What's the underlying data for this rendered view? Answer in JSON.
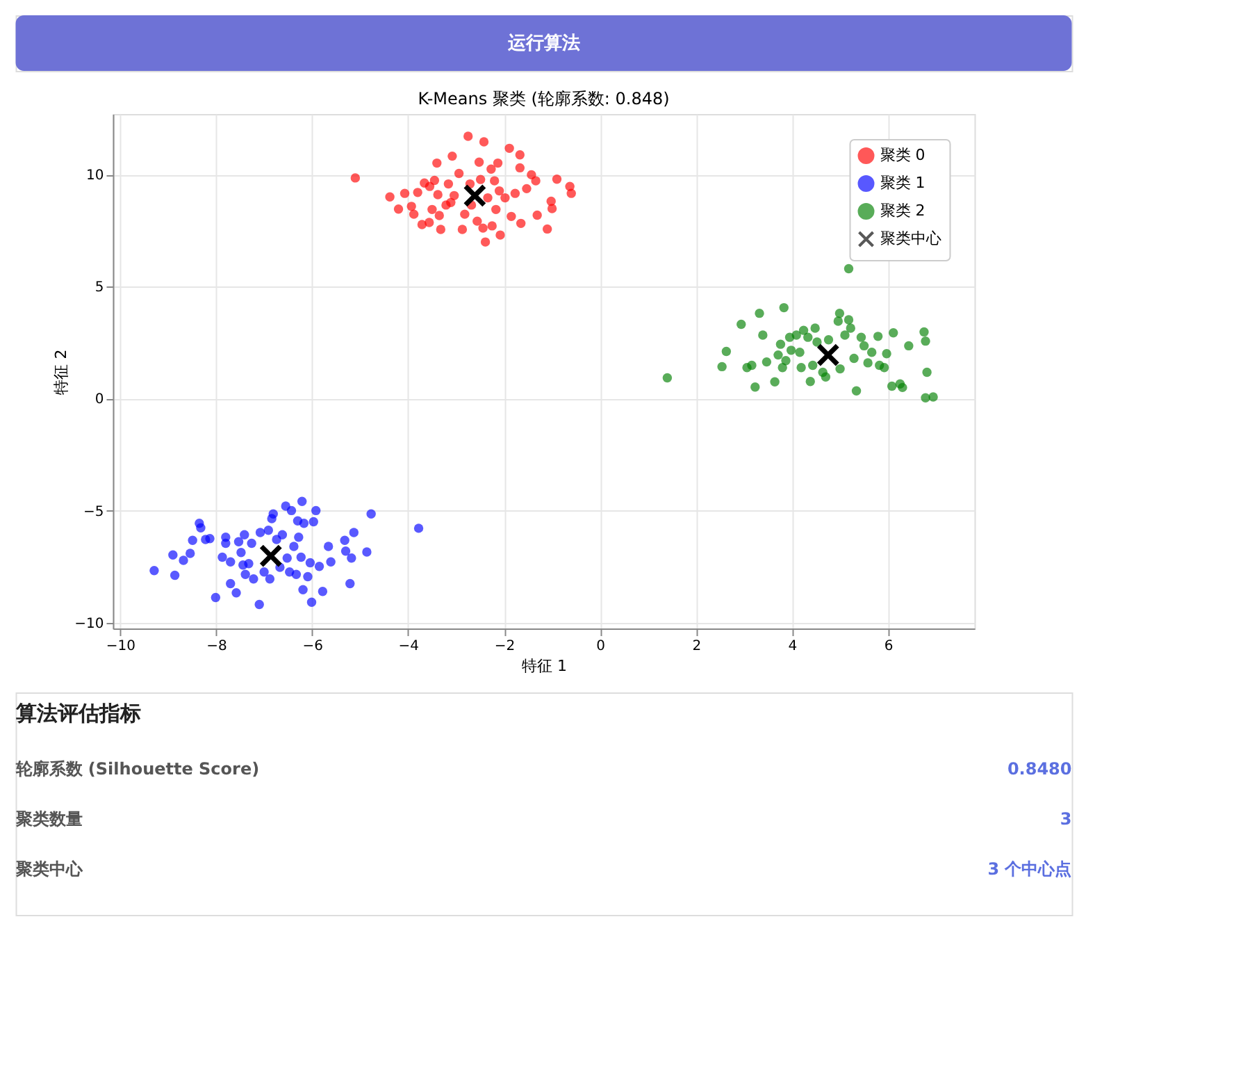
{
  "chart_data": {
    "type": "scatter",
    "title": "K-Means 聚类 (轮廓系数: 0.848)",
    "xlabel": "特征 1",
    "ylabel": "特征 2",
    "xlim": [
      -10.15,
      7.8
    ],
    "ylim": [
      -10.25,
      12.7
    ],
    "xticks": [
      -10,
      -8,
      -6,
      -4,
      -2,
      0,
      2,
      4,
      6
    ],
    "yticks": [
      -10,
      -5,
      0,
      5,
      10
    ],
    "grid": true,
    "legend": "top right",
    "annotations": [
      "运行算法",
      "算法评估指标",
      "轮廓系数 (Silhouette Score)",
      "0.8480",
      "聚类数量",
      "3",
      "聚类中心",
      "3 个中心点"
    ],
    "series": [
      {
        "name": "聚类 0",
        "color": "#ff0000",
        "marker": "circle",
        "x": [
          -5.1,
          -4.38,
          -4.2,
          -4.07,
          -3.93,
          -3.88,
          -3.8,
          -3.71,
          -3.66,
          -3.56,
          -3.55,
          -3.45,
          -3.4,
          -3.38,
          -3.35,
          -3.32,
          -3.29,
          -3.16,
          -3.11,
          -3.08,
          -3.04,
          -2.94,
          -2.87,
          -2.82,
          -2.75,
          -2.71,
          -2.68,
          -2.56,
          -2.52,
          -2.49,
          -2.44,
          -2.42,
          -2.39,
          -2.34,
          -2.27,
          -2.25,
          -2.2,
          -2.17,
          -2.13,
          -2.1,
          -2.08,
          -1.98,
          -1.89,
          -1.85,
          -1.77,
          -1.67,
          -1.67,
          -1.65,
          -1.53,
          -1.43,
          -1.34,
          -1.31,
          -1.1,
          -1.02,
          -1.0,
          -0.9,
          -0.63,
          -0.6,
          -3.21,
          -3.5
        ],
        "values": [
          9.85,
          9.0,
          8.46,
          9.16,
          8.58,
          8.23,
          9.2,
          7.77,
          9.62,
          7.86,
          9.47,
          9.74,
          10.51,
          9.1,
          8.17,
          7.55,
          null,
          9.58,
          8.75,
          10.82,
          9.06,
          10.05,
          7.55,
          8.23,
          11.71,
          9.58,
          8.64,
          7.92,
          10.55,
          9.78,
          7.61,
          11.46,
          6.99,
          8.96,
          10.24,
          7.71,
          9.72,
          8.44,
          10.51,
          9.27,
          7.3,
          8.96,
          11.17,
          8.13,
          9.16,
          10.88,
          10.3,
          7.82,
          9.37,
          9.99,
          9.72,
          8.19,
          7.57,
          8.81,
          8.48,
          9.79,
          9.47,
          9.16,
          8.64,
          8.44
        ]
      },
      {
        "name": "聚类 1",
        "color": "#0000ff",
        "marker": "circle",
        "x": [
          -9.29,
          -8.9,
          -8.86,
          -8.68,
          -8.54,
          -8.49,
          -8.35,
          -8.32,
          -8.22,
          -8.13,
          -8.01,
          -7.87,
          -7.8,
          -7.8,
          -7.7,
          -7.7,
          -7.58,
          -7.53,
          -7.48,
          -7.44,
          -7.41,
          -7.39,
          -7.32,
          -7.26,
          -7.22,
          -7.1,
          -7.08,
          -7.0,
          -6.91,
          -6.88,
          -6.84,
          -6.81,
          -6.74,
          -6.67,
          -6.62,
          -6.55,
          -6.52,
          -6.47,
          -6.43,
          -6.38,
          -6.33,
          -6.3,
          -6.28,
          -6.23,
          -6.21,
          -6.19,
          -6.17,
          -6.09,
          -6.04,
          -6.01,
          -5.97,
          -5.92,
          -5.85,
          -5.78,
          -5.66,
          -5.61,
          -5.32,
          -5.3,
          -5.21,
          -5.18,
          -5.13,
          -4.86,
          -4.77,
          -3.78
        ],
        "values": [
          -7.67,
          -6.97,
          -7.88,
          -7.21,
          -6.9,
          -6.32,
          -5.56,
          -5.76,
          -6.28,
          -6.24,
          -8.87,
          -7.07,
          -6.18,
          -6.45,
          -7.28,
          -8.25,
          -8.66,
          -6.38,
          -6.86,
          -7.42,
          -6.07,
          -7.84,
          -7.36,
          -6.45,
          -8.04,
          -9.18,
          -5.97,
          -7.73,
          -5.87,
          -8.04,
          -5.35,
          -5.14,
          -6.28,
          -7.52,
          -6.07,
          -4.79,
          -7.11,
          -7.73,
          -4.99,
          -6.59,
          -7.84,
          -5.45,
          -6.18,
          -7.07,
          -4.58,
          -8.52,
          -5.56,
          -7.94,
          -7.32,
          -9.08,
          -5.49,
          -4.99,
          -7.48,
          -8.6,
          -6.59,
          -7.28,
          -6.32,
          -6.8,
          -8.25,
          -7.11,
          -5.97,
          -6.84,
          -5.14,
          -5.78
        ]
      },
      {
        "name": "聚类 2",
        "color": "#008000",
        "marker": "circle",
        "x": [
          1.4,
          2.54,
          2.63,
          2.94,
          3.06,
          3.16,
          3.23,
          3.32,
          3.39,
          3.47,
          3.64,
          3.71,
          3.76,
          3.8,
          3.83,
          3.87,
          3.95,
          3.98,
          4.09,
          4.16,
          4.19,
          4.24,
          4.33,
          4.38,
          4.43,
          4.48,
          4.52,
          4.64,
          4.7,
          4.76,
          4.86,
          4.96,
          4.99,
          5.0,
          5.1,
          5.18,
          5.18,
          5.22,
          5.29,
          5.34,
          5.44,
          5.5,
          5.58,
          5.66,
          5.79,
          5.82,
          5.92,
          5.97,
          6.08,
          6.11,
          6.25,
          6.43,
          6.3,
          6.75,
          6.78,
          6.81,
          6.78,
          6.94
        ],
        "values": [
          0.93,
          1.43,
          2.11,
          3.32,
          1.39,
          1.49,
          0.52,
          3.81,
          2.84,
          1.64,
          0.75,
          1.95,
          2.43,
          1.39,
          4.06,
          1.7,
          2.74,
          2.16,
          2.84,
          2.07,
          1.39,
          3.05,
          2.74,
          0.77,
          1.49,
          3.15,
          2.53,
          1.18,
          0.97,
          2.63,
          null,
          3.46,
          3.81,
          1.33,
          2.84,
          3.52,
          5.8,
          3.15,
          1.8,
          0.35,
          2.74,
          2.36,
          1.6,
          2.07,
          2.78,
          1.49,
          1.39,
          2.01,
          0.56,
          2.94,
          0.66,
          2.36,
          0.5,
          2.98,
          2.57,
          1.18,
          0.04,
          0.08
        ]
      },
      {
        "name": "聚类中心",
        "color": "#000000",
        "marker": "cross",
        "x": [
          -2.61,
          -6.86,
          4.75
        ],
        "values": [
          9.06,
          -7.01,
          1.95
        ]
      }
    ]
  }
}
